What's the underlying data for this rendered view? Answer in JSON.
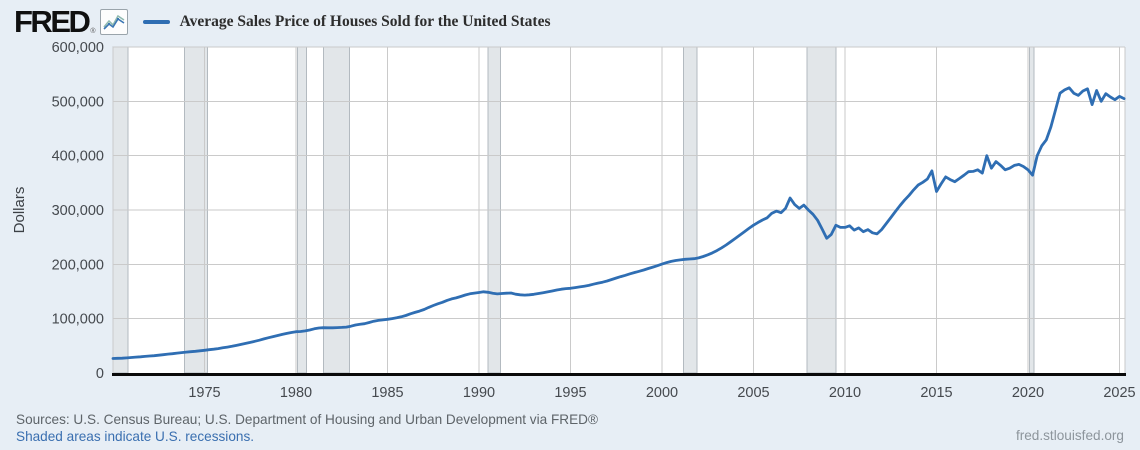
{
  "header": {
    "logo": "FRED",
    "registered_mark": "®",
    "legend_label": "Average Sales Price of Houses Sold for the United States"
  },
  "footer": {
    "sources": "Sources: U.S. Census Bureau; U.S. Department of Housing and Urban Development via FRED®",
    "recession_note": "Shaded areas indicate U.S. recessions.",
    "site": "fred.stlouisfed.org"
  },
  "colors": {
    "page_bg": "#e7eef5",
    "plot_bg": "#ffffff",
    "line": "#2f6eb3",
    "gridline": "#cacaca",
    "recession_band": "#e2e6e9",
    "recession_band_edge": "#b3bac0",
    "axis": "#0a0a0a",
    "tick_text": "#45494e",
    "title_text": "#2d2d2d",
    "source_text": "#5e6469",
    "link_text": "#3a6fb0",
    "site_text": "#8d959c"
  },
  "chart_data": {
    "type": "line",
    "title": "Average Sales Price of Houses Sold for the United States",
    "xlabel": "",
    "ylabel": "Dollars",
    "x_domain": [
      1970.0,
      2025.3
    ],
    "y_domain": [
      0,
      600000
    ],
    "x_ticks": [
      1975,
      1980,
      1985,
      1990,
      1995,
      2000,
      2005,
      2010,
      2015,
      2020,
      2025
    ],
    "x_tick_labels": [
      "1975",
      "1980",
      "1985",
      "1990",
      "1995",
      "2000",
      "2005",
      "2010",
      "2015",
      "2020",
      "2025"
    ],
    "y_ticks": [
      0,
      100000,
      200000,
      300000,
      400000,
      500000,
      600000
    ],
    "y_tick_labels": [
      "0",
      "100,000",
      "200,000",
      "300,000",
      "400,000",
      "500,000",
      "600,000"
    ],
    "grid": true,
    "legend_position": "top",
    "line_color": "#2f6eb3",
    "recessions": [
      [
        1969.92,
        1970.83
      ],
      [
        1973.92,
        1975.17
      ],
      [
        1980.08,
        1980.58
      ],
      [
        1981.5,
        1982.92
      ],
      [
        1990.5,
        1991.17
      ],
      [
        2001.17,
        2001.92
      ],
      [
        2007.92,
        2009.5
      ],
      [
        2020.08,
        2020.33
      ]
    ],
    "series": [
      {
        "name": "Average Sales Price of Houses Sold for the United States",
        "frequency": "quarterly",
        "x_start": 1970.0,
        "x_step": 0.25,
        "values": [
          26600,
          27000,
          27300,
          27800,
          28500,
          29200,
          29800,
          30500,
          31200,
          31900,
          32800,
          33700,
          34700,
          35600,
          36600,
          37500,
          38400,
          39200,
          40000,
          40900,
          41800,
          42800,
          43800,
          45000,
          46300,
          47700,
          49200,
          50800,
          52600,
          54500,
          56400,
          58300,
          60400,
          62700,
          64900,
          67000,
          69100,
          71100,
          72900,
          74500,
          76100,
          76400,
          77400,
          79200,
          81300,
          82800,
          83400,
          83100,
          83100,
          83500,
          83900,
          84500,
          86100,
          88400,
          89700,
          90800,
          92900,
          95300,
          96800,
          97700,
          98800,
          100200,
          101600,
          103500,
          105900,
          108900,
          111600,
          114000,
          116800,
          120700,
          124300,
          127300,
          130200,
          133700,
          136400,
          138300,
          140800,
          143600,
          145700,
          147100,
          148200,
          149400,
          148600,
          146800,
          145600,
          146400,
          146900,
          147200,
          145000,
          143900,
          143400,
          144000,
          144800,
          146300,
          147700,
          149300,
          151000,
          152800,
          154300,
          155400,
          155900,
          157100,
          158400,
          159700,
          161300,
          163400,
          165400,
          167200,
          169300,
          172100,
          174900,
          177500,
          179900,
          182500,
          184900,
          187100,
          189500,
          192300,
          195000,
          197500,
          200500,
          203200,
          205400,
          207000,
          208100,
          209200,
          209800,
          210400,
          211900,
          214400,
          217500,
          221100,
          225300,
          230200,
          235600,
          241400,
          247500,
          253800,
          260100,
          266200,
          272000,
          277200,
          281800,
          285700,
          294000,
          298000,
          295000,
          303000,
          322000,
          310000,
          303000,
          309000,
          300000,
          292000,
          281000,
          265000,
          248000,
          255000,
          272000,
          268000,
          268000,
          271000,
          263000,
          267000,
          260000,
          264000,
          258000,
          256000,
          264000,
          275000,
          286000,
          297000,
          308000,
          318000,
          327000,
          337000,
          346000,
          351000,
          357000,
          372000,
          334000,
          348000,
          361000,
          356000,
          352000,
          358000,
          364000,
          370500,
          371000,
          374000,
          368000,
          400000,
          377000,
          389000,
          382000,
          374000,
          377000,
          382000,
          384000,
          380000,
          374000,
          364000,
          400000,
          418000,
          429000,
          453000,
          484000,
          515000,
          521000,
          525000,
          515000,
          511000,
          519000,
          523000,
          494000,
          520000,
          500000,
          514000,
          508000,
          503000,
          509000,
          505000
        ]
      }
    ]
  }
}
